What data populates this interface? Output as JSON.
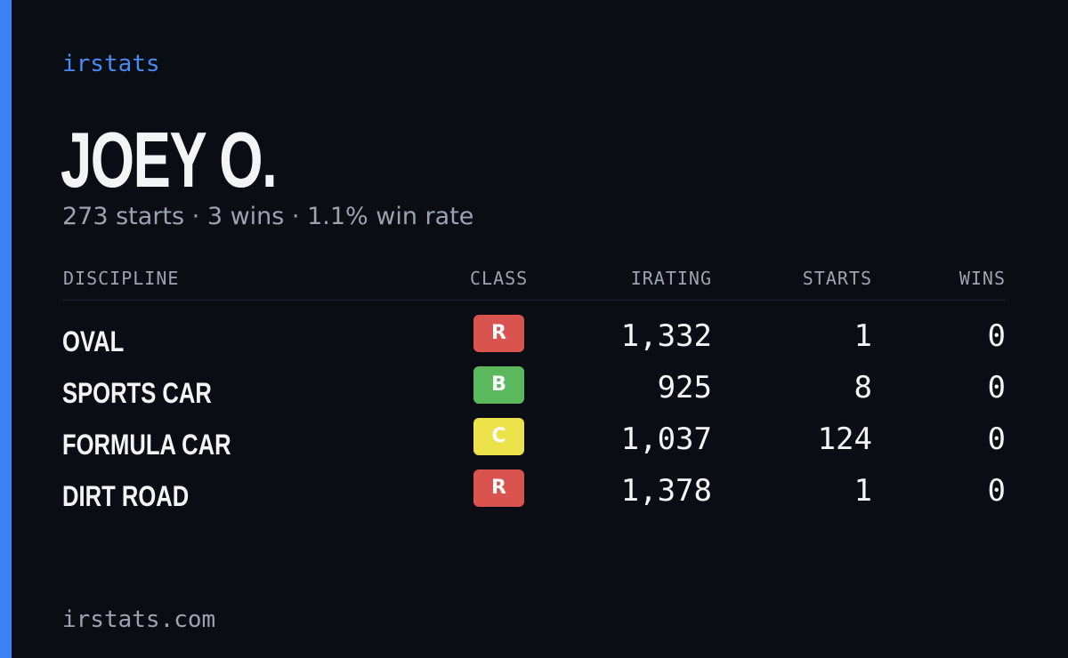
{
  "brand": "irstats",
  "name": "JOEY O.",
  "summary": "273 starts · 3 wins · 1.1% win rate",
  "table": {
    "headers": [
      "DISCIPLINE",
      "CLASS",
      "IRATING",
      "STARTS",
      "WINS"
    ],
    "rows": [
      {
        "discipline": "OVAL",
        "class": "R",
        "class_color": "#d9534f",
        "irating": "1,332",
        "starts": "1",
        "wins": "0"
      },
      {
        "discipline": "SPORTS CAR",
        "class": "B",
        "class_color": "#5cb85c",
        "irating": "925",
        "starts": "8",
        "wins": "0"
      },
      {
        "discipline": "FORMULA CAR",
        "class": "C",
        "class_color": "#ece24a",
        "irating": "1,037",
        "starts": "124",
        "wins": "0"
      },
      {
        "discipline": "DIRT ROAD",
        "class": "R",
        "class_color": "#d9534f",
        "irating": "1,378",
        "starts": "1",
        "wins": "0"
      }
    ]
  },
  "footer": "irstats.com"
}
